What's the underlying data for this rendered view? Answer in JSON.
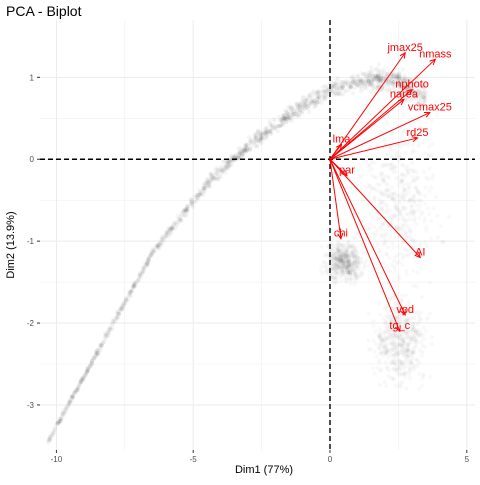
{
  "chart_data": {
    "type": "scatter",
    "title": "PCA - Biplot",
    "xlabel": "Dim1 (77%)",
    "ylabel": "Dim2 (13.9%)",
    "xlim": [
      -10.6,
      5.3
    ],
    "ylim": [
      -3.55,
      1.7
    ],
    "x_ticks": [
      -10,
      -5,
      0,
      5
    ],
    "y_ticks": [
      1,
      0,
      -1,
      -2,
      -3
    ],
    "grid": true,
    "reference_lines": {
      "x": 0,
      "y": 0,
      "style": "dashed"
    },
    "colors": {
      "arrows": "#ff0000",
      "points": "#000000",
      "grid": "#ebebeb"
    },
    "variables": [
      {
        "name": "jmax25",
        "x": 2.75,
        "y": 1.3
      },
      {
        "name": "nmass",
        "x": 3.85,
        "y": 1.22
      },
      {
        "name": "nphoto",
        "x": 3.0,
        "y": 0.85
      },
      {
        "name": "narea",
        "x": 2.7,
        "y": 0.73
      },
      {
        "name": "vcmax25",
        "x": 3.65,
        "y": 0.57
      },
      {
        "name": "rd25",
        "x": 3.2,
        "y": 0.26
      },
      {
        "name": "lma",
        "x": 0.42,
        "y": 0.18
      },
      {
        "name": "par",
        "x": 0.62,
        "y": -0.2
      },
      {
        "name": "chi",
        "x": 0.4,
        "y": -0.97
      },
      {
        "name": "AI",
        "x": 3.3,
        "y": -1.2
      },
      {
        "name": "vpd",
        "x": 2.75,
        "y": -1.9
      },
      {
        "name": "tg_c",
        "x": 2.55,
        "y": -2.1
      }
    ],
    "point_cloud": [
      {
        "region": "curve",
        "path": [
          [
            -10.3,
            -3.45
          ],
          [
            -8.5,
            -2.35
          ],
          [
            -6.5,
            -1.15
          ],
          [
            -4.5,
            -0.3
          ],
          [
            -3.0,
            0.15
          ],
          [
            -1.5,
            0.55
          ],
          [
            0.0,
            0.85
          ],
          [
            1.5,
            0.98
          ],
          [
            2.5,
            0.95
          ],
          [
            3.5,
            0.75
          ]
        ]
      },
      {
        "region": "cluster",
        "center": [
          0.5,
          -1.25
        ],
        "spread": [
          0.6,
          0.22
        ]
      },
      {
        "region": "cluster",
        "center": [
          2.5,
          -0.5
        ],
        "spread": [
          1.3,
          0.9
        ]
      },
      {
        "region": "cluster",
        "center": [
          2.6,
          -2.2
        ],
        "spread": [
          0.9,
          0.5
        ]
      }
    ]
  }
}
